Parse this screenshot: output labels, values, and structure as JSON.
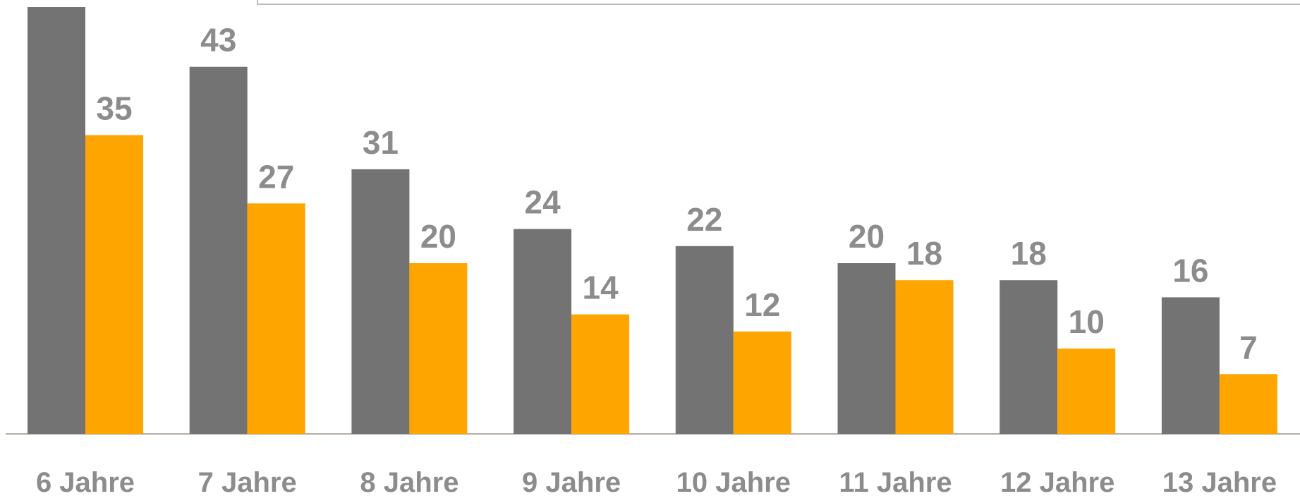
{
  "chart_data": {
    "type": "bar",
    "categories": [
      "6 Jahre",
      "7 Jahre",
      "8 Jahre",
      "9 Jahre",
      "10 Jahre",
      "11 Jahre",
      "12 Jahre",
      "13 Jahre"
    ],
    "series": [
      {
        "color": "#737373",
        "values": [
          50,
          43,
          31,
          24,
          22,
          20,
          18,
          16
        ]
      },
      {
        "color": "#ffa500",
        "values": [
          35,
          27,
          20,
          14,
          12,
          18,
          10,
          7
        ]
      }
    ],
    "ylim": [
      0,
      50
    ]
  }
}
